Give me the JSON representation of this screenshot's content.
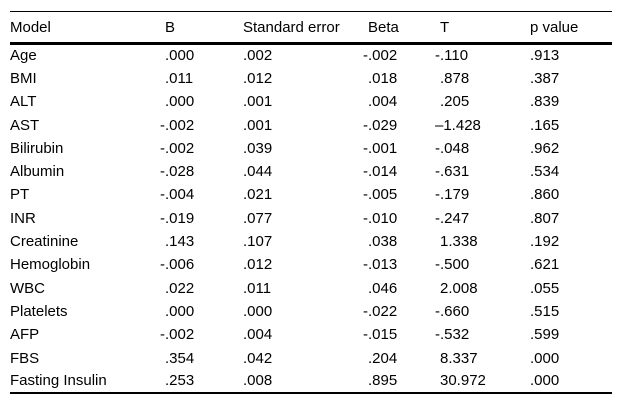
{
  "table": {
    "columns": [
      {
        "key": "model",
        "label": "Model"
      },
      {
        "key": "b",
        "label": "B"
      },
      {
        "key": "se",
        "label": "Standard error"
      },
      {
        "key": "beta",
        "label": "Beta"
      },
      {
        "key": "t",
        "label": "T"
      },
      {
        "key": "p",
        "label": "p value"
      }
    ],
    "rows": [
      [
        "Age",
        ".000",
        ".002",
        "-.002",
        "-.110",
        ".913"
      ],
      [
        "BMI",
        ".011",
        ".012",
        ".018",
        ".878",
        ".387"
      ],
      [
        "ALT",
        ".000",
        ".001",
        ".004",
        ".205",
        ".839"
      ],
      [
        "AST",
        "-.002",
        ".001",
        "-.029",
        "–1.428",
        ".165"
      ],
      [
        "Bilirubin",
        "-.002",
        ".039",
        "-.001",
        "-.048",
        ".962"
      ],
      [
        "Albumin",
        "-.028",
        ".044",
        "-.014",
        "-.631",
        ".534"
      ],
      [
        "PT",
        "-.004",
        ".021",
        "-.005",
        "-.179",
        ".860"
      ],
      [
        "INR",
        "-.019",
        ".077",
        "-.010",
        "-.247",
        ".807"
      ],
      [
        "Creatinine",
        ".143",
        ".107",
        ".038",
        "1.338",
        ".192"
      ],
      [
        "Hemoglobin",
        "-.006",
        ".012",
        "-.013",
        "-.500",
        ".621"
      ],
      [
        "WBC",
        ".022",
        ".011",
        ".046",
        "2.008",
        ".055"
      ],
      [
        "Platelets",
        ".000",
        ".000",
        "-.022",
        "-.660",
        ".515"
      ],
      [
        "AFP",
        "-.002",
        ".004",
        "-.015",
        "-.532",
        ".599"
      ],
      [
        "FBS",
        ".354",
        ".042",
        ".204",
        "8.337",
        ".000"
      ],
      [
        "Fasting Insulin",
        ".253",
        ".008",
        ".895",
        "30.972",
        ".000"
      ]
    ]
  }
}
